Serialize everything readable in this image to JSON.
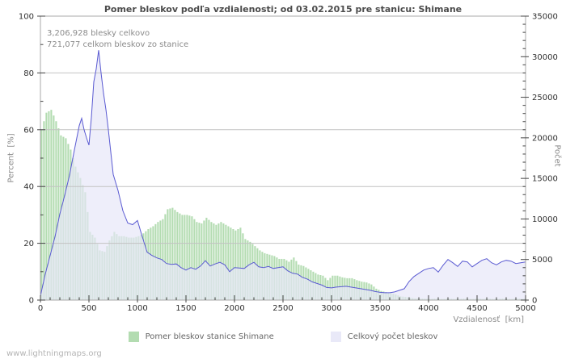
{
  "header": {
    "title": "Pomer bleskov podľa vzdialenosti; od 03.02.2015 pre stanicu: Shimane"
  },
  "annotation": {
    "total_lightning": "3,206,928 blesky celkovo",
    "station_lightning": "721,077 celkom bleskov zo stanice"
  },
  "watermark": "www.lightningmaps.org",
  "legend": {
    "items": [
      {
        "label": "Pomer bleskov stanice Shimane",
        "color": "#b3dcb1"
      },
      {
        "label": "Celkový počet bleskov",
        "color": "#e9e9f8"
      }
    ]
  },
  "colors": {
    "bar_fill": "#b3dcb1",
    "count_fill": "#e6e6f7",
    "count_line": "#5a5ad2",
    "grid": "#c2c2c2",
    "border": "#a9a9a9",
    "tick": "#444444",
    "tick_label": "#2f2f2f"
  },
  "chart_data": {
    "type": "mixed",
    "title": "Pomer bleskov podľa vzdialenosti; od 03.02.2015 pre stanicu: Shimane",
    "x_axis": {
      "label": "Vzdialenosť  [km]",
      "min": 0,
      "max": 5000,
      "major_tick_step": 500,
      "minor_tick_step": 100,
      "ticks": [
        0,
        500,
        1000,
        1500,
        2000,
        2500,
        3000,
        3500,
        4000,
        4500,
        5000
      ]
    },
    "y_axis_left": {
      "label": "Percent  [%]",
      "min": 0,
      "max": 100,
      "major_tick_step": 20,
      "minor_tick_step": 10,
      "ticks": [
        0,
        20,
        40,
        60,
        80,
        100
      ]
    },
    "y_axis_right": {
      "label": "Počet",
      "min": 0,
      "max": 35000,
      "major_tick_step": 5000,
      "minor_tick_step": 1000,
      "ticks": [
        0,
        5000,
        10000,
        15000,
        20000,
        25000,
        30000,
        35000
      ]
    },
    "grid": {
      "horizontal_at_percent": [
        20,
        40,
        60,
        80
      ]
    },
    "legend_position": "bottom-center",
    "series": [
      {
        "name": "Pomer bleskov stanice Shimane",
        "type": "bar",
        "axis": "left",
        "unit": "%",
        "color": "#b3dcb1",
        "x_start": 0,
        "x_step": 50,
        "values": [
          60,
          66,
          67,
          63,
          58,
          57,
          53,
          47,
          43,
          38,
          24,
          22,
          17.5,
          17,
          21,
          24,
          22.5,
          22.5,
          22,
          22,
          22.5,
          23.5,
          25,
          26,
          27.5,
          28.5,
          32,
          32.5,
          31,
          30,
          30,
          29.5,
          27.5,
          27,
          29,
          27.5,
          26.5,
          27.5,
          26.5,
          25.5,
          24.5,
          25.5,
          21.5,
          20.5,
          19,
          17.5,
          16.5,
          16,
          15.5,
          14.5,
          14.5,
          13.5,
          15,
          12.5,
          12,
          11,
          10,
          9,
          8.6,
          7,
          8.6,
          8.6,
          8,
          7.7,
          7.7,
          7,
          6.5,
          6.2,
          5.5,
          4,
          3.2,
          2.8,
          2.5,
          2,
          1.3,
          1.1,
          0.8,
          0.6,
          0.5,
          0.5,
          0.4,
          0.5,
          0.4,
          0.4,
          0.5,
          0.4,
          0.4,
          0.5,
          0.4,
          0.4,
          0.5,
          0.4,
          0.5,
          0.4,
          0.4,
          0.5,
          0.4,
          0.4,
          0.5,
          0.4,
          0.4
        ]
      },
      {
        "name": "Celkový počet bleskov",
        "type": "area-line",
        "axis": "right",
        "unit": "count",
        "fill": "#e6e6f7",
        "line_color": "#5a5ad2",
        "x": [
          0,
          50,
          100,
          150,
          200,
          250,
          300,
          350,
          375,
          400,
          425,
          450,
          475,
          500,
          525,
          550,
          575,
          600,
          625,
          650,
          675,
          700,
          750,
          800,
          850,
          900,
          950,
          1000,
          1050,
          1100,
          1150,
          1200,
          1250,
          1300,
          1350,
          1400,
          1450,
          1500,
          1550,
          1600,
          1650,
          1700,
          1750,
          1800,
          1850,
          1900,
          1950,
          2000,
          2050,
          2100,
          2150,
          2200,
          2250,
          2300,
          2350,
          2400,
          2450,
          2500,
          2550,
          2600,
          2650,
          2700,
          2750,
          2800,
          2850,
          2900,
          2950,
          3000,
          3050,
          3100,
          3150,
          3200,
          3250,
          3300,
          3350,
          3400,
          3450,
          3500,
          3550,
          3600,
          3650,
          3700,
          3750,
          3800,
          3850,
          3900,
          3950,
          4000,
          4050,
          4100,
          4150,
          4200,
          4250,
          4300,
          4350,
          4400,
          4450,
          4500,
          4550,
          4600,
          4650,
          4700,
          4750,
          4800,
          4850,
          4900,
          4950,
          5000
        ],
        "values": [
          500,
          3200,
          5500,
          7800,
          10600,
          12900,
          15400,
          18500,
          20000,
          21500,
          22400,
          21000,
          20000,
          19100,
          22500,
          26900,
          28500,
          30800,
          28000,
          25500,
          23500,
          21000,
          15500,
          13500,
          11000,
          9500,
          9300,
          9800,
          7800,
          5900,
          5500,
          5200,
          5000,
          4500,
          4400,
          4450,
          4000,
          3700,
          4000,
          3800,
          4200,
          4850,
          4200,
          4450,
          4650,
          4350,
          3500,
          4000,
          3950,
          3900,
          4350,
          4650,
          4100,
          4000,
          4150,
          3900,
          4000,
          4100,
          3600,
          3300,
          3200,
          2800,
          2600,
          2250,
          2050,
          1850,
          1550,
          1500,
          1600,
          1650,
          1700,
          1600,
          1500,
          1400,
          1300,
          1200,
          1050,
          950,
          900,
          900,
          1000,
          1200,
          1400,
          2300,
          2900,
          3300,
          3700,
          3900,
          4000,
          3450,
          4300,
          5000,
          4600,
          4150,
          4800,
          4700,
          4100,
          4500,
          4900,
          5100,
          4600,
          4350,
          4700,
          4900,
          4800,
          4500,
          4600,
          4700
        ]
      }
    ]
  }
}
